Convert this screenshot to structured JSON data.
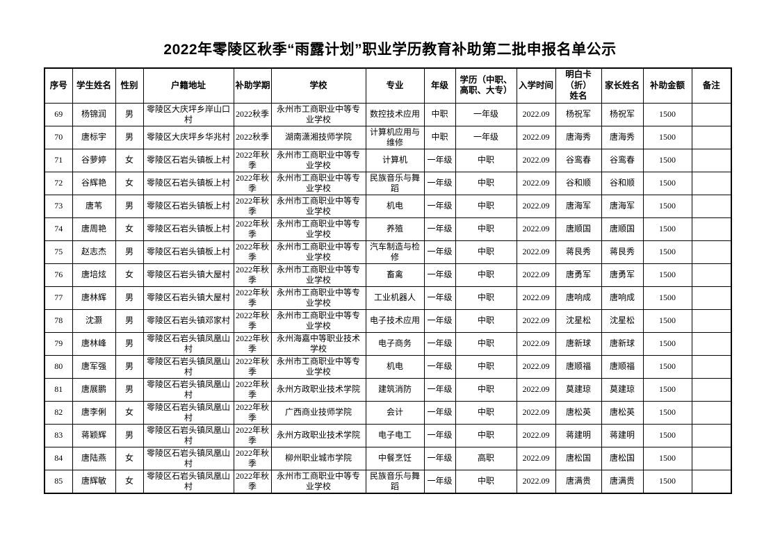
{
  "page": {
    "title": "2022年零陵区秋季“雨露计划”职业学历教育补助第二批申报名单公示"
  },
  "table": {
    "headers": [
      "序号",
      "学生姓名",
      "性别",
      "户籍地址",
      "补助学期",
      "学校",
      "专业",
      "年级",
      "学历（中职、\n高职、大专）",
      "入学时间",
      "明白卡\n（折）姓名",
      "家长姓名",
      "补助金额",
      "备注"
    ],
    "rows": [
      [
        "69",
        "杨锦润",
        "男",
        "零陵区大庆坪乡岸山口村",
        "2022秋季",
        "永州市工商职业中等专业学校",
        "数控技术应用",
        "中职",
        "一年级",
        "2022.09",
        "杨祝军",
        "杨祝军",
        "1500",
        ""
      ],
      [
        "70",
        "唐标宇",
        "男",
        "零陵区大庆坪乡华兆村",
        "2022秋季",
        "湖南潇湘技师学院",
        "计算机应用与维修",
        "中职",
        "一年级",
        "2022.09",
        "唐海秀",
        "唐海秀",
        "1500",
        ""
      ],
      [
        "71",
        "谷萝婷",
        "女",
        "零陵区石岩头镇板上村",
        "2022年秋季",
        "永州市工商职业中等专业学校",
        "计算机",
        "一年级",
        "中职",
        "2022.09",
        "谷鸾春",
        "谷鸾春",
        "1500",
        ""
      ],
      [
        "72",
        "谷辉艳",
        "女",
        "零陵区石岩头镇板上村",
        "2022年秋季",
        "永州市工商职业中等专业学校",
        "民族音乐与舞蹈",
        "一年级",
        "中职",
        "2022.09",
        "谷和顺",
        "谷和顺",
        "1500",
        ""
      ],
      [
        "73",
        "唐苇",
        "男",
        "零陵区石岩头镇板上村",
        "2022年秋季",
        "永州市工商职业中等专业学校",
        "机电",
        "一年级",
        "中职",
        "2022.09",
        "唐海军",
        "唐海军",
        "1500",
        ""
      ],
      [
        "74",
        "唐周艳",
        "女",
        "零陵区石岩头镇板上村",
        "2022年秋季",
        "永州市工商职业中等专业学校",
        "养殖",
        "一年级",
        "中职",
        "2022.09",
        "唐顺国",
        "唐顺国",
        "1500",
        ""
      ],
      [
        "75",
        "赵志杰",
        "男",
        "零陵区石岩头镇板上村",
        "2022年秋季",
        "永州市工商职业中等专业学校",
        "汽车制造与检修",
        "一年级",
        "中职",
        "2022.09",
        "蒋艮秀",
        "蒋艮秀",
        "1500",
        ""
      ],
      [
        "76",
        "唐培炫",
        "女",
        "零陵区石岩头镇大屋村",
        "2022年秋季",
        "永州市工商职业中等专业学校",
        "畜禽",
        "一年级",
        "中职",
        "2022.09",
        "唐勇军",
        "唐勇军",
        "1500",
        ""
      ],
      [
        "77",
        "唐林辉",
        "男",
        "零陵区石岩头镇大屋村",
        "2022年秋季",
        "永州市工商职业中等专业学校",
        "工业机器人",
        "一年级",
        "中职",
        "2022.09",
        "唐响成",
        "唐响成",
        "1500",
        ""
      ],
      [
        "78",
        "沈灏",
        "男",
        "零陵区石岩头镇邓家村",
        "2022年秋季",
        "永州市工商职业中等专业学校",
        "电子技术应用",
        "一年级",
        "中职",
        "2022.09",
        "沈星松",
        "沈星松",
        "1500",
        ""
      ],
      [
        "79",
        "唐林峰",
        "男",
        "零陵区石岩头镇凤凰山村",
        "2022年秋季",
        "永州海嘉中等职业技术学校",
        "电子商务",
        "一年级",
        "中职",
        "2022.09",
        "唐新球",
        "唐新球",
        "1500",
        ""
      ],
      [
        "80",
        "唐军强",
        "男",
        "零陵区石岩头镇凤凰山村",
        "2022年秋季",
        "永州市工商职业中等专业学校",
        "机电",
        "一年级",
        "中职",
        "2022.09",
        "唐顺福",
        "唐顺福",
        "1500",
        ""
      ],
      [
        "81",
        "唐展鹏",
        "男",
        "零陵区石岩头镇凤凰山村",
        "2022年秋季",
        "永州方政职业技术学院",
        "建筑消防",
        "一年级",
        "中职",
        "2022.09",
        "莫建琼",
        "莫建琼",
        "1500",
        ""
      ],
      [
        "82",
        "唐李俐",
        "女",
        "零陵区石岩头镇凤凰山村",
        "2022年秋季",
        "广西商业技师学院",
        "会计",
        "一年级",
        "中职",
        "2022.09",
        "唐松英",
        "唐松英",
        "1500",
        ""
      ],
      [
        "83",
        "蒋颖辉",
        "男",
        "零陵区石岩头镇凤凰山村",
        "2022年秋季",
        "永州方政职业技术学院",
        "电子电工",
        "一年级",
        "中职",
        "2022.09",
        "蒋建明",
        "蒋建明",
        "1500",
        ""
      ],
      [
        "84",
        "唐陆燕",
        "女",
        "零陵区石岩头镇凤凰山村",
        "2022年秋季",
        "柳州职业城市学院",
        "中餐烹饪",
        "一年级",
        "高职",
        "2022.09",
        "唐松国",
        "唐松国",
        "1500",
        ""
      ],
      [
        "85",
        "唐辉敏",
        "女",
        "零陵区石岩头镇凤凰山村",
        "2022年秋季",
        "永州市工商职业中等专业学校",
        "民族音乐与舞蹈",
        "一年级",
        "中职",
        "2022.09",
        "唐满贵",
        "唐满贵",
        "1500",
        ""
      ]
    ]
  }
}
